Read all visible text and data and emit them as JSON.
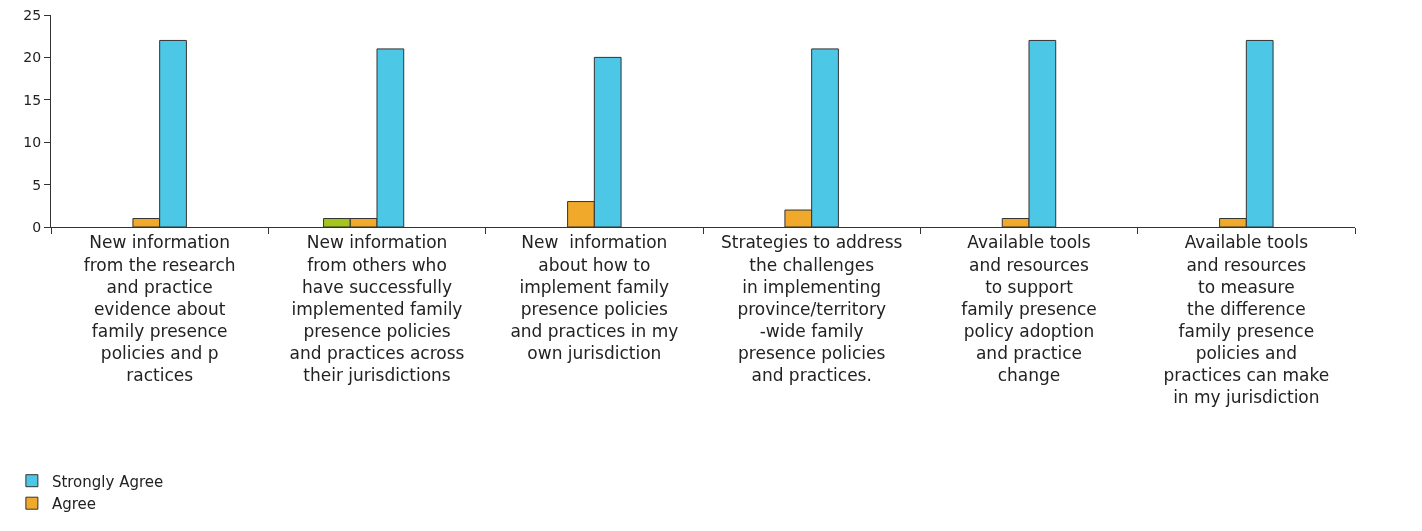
{
  "chart_data": {
    "type": "bar",
    "categories": [
      "New information\nfrom the research\nand practice\nevidence about\nfamily presence\npolicies and p\nractices",
      "New information\nfrom others who\nhave successfully\nimplemented family\npresence policies\nand practices across\ntheir jurisdictions",
      "New  information\nabout how to\nimplement family\npresence policies\nand practices in my\nown jurisdiction",
      "Strategies to address\nthe challenges\nin implementing\nprovince/territory\n-wide family\npresence policies\nand practices.",
      "Available tools\nand resources\nto support\nfamily presence\npolicy adoption\nand practice\nchange",
      "Available tools\nand resources\nto measure\nthe difference\nfamily presence\npolicies and\npractices can make\nin my jurisdiction"
    ],
    "series": [
      {
        "color": "#a3c51e",
        "values": [
          0,
          1,
          0,
          0,
          0,
          0
        ]
      },
      {
        "name": "Agree",
        "color": "#f0a92a",
        "values": [
          1,
          1,
          3,
          2,
          1,
          1
        ]
      },
      {
        "name": "Strongly Agree",
        "color": "#4dc7e6",
        "values": [
          22,
          21,
          20,
          21,
          22,
          22
        ]
      }
    ],
    "ylim": [
      0,
      25
    ],
    "yticks": [
      0,
      5,
      10,
      15,
      20,
      25
    ],
    "grid": false,
    "legend": "bottom left"
  }
}
